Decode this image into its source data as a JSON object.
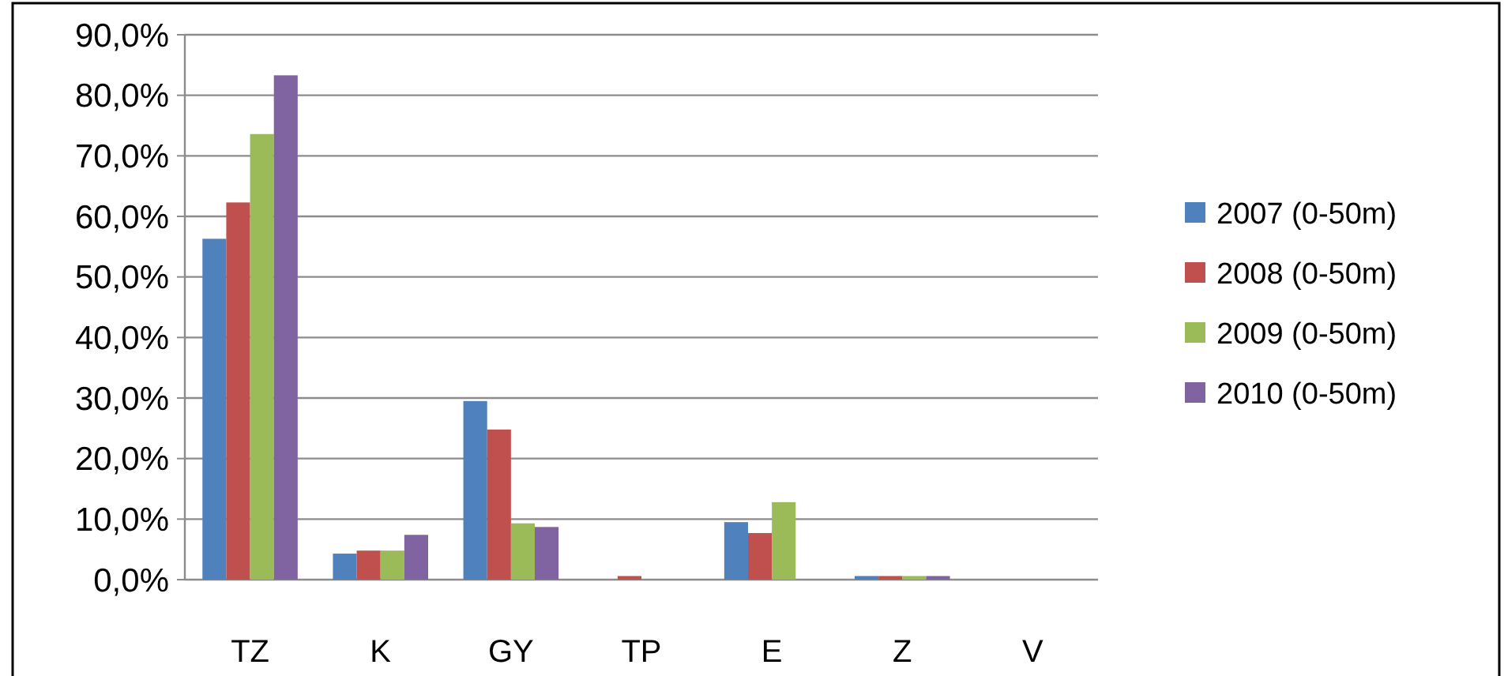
{
  "chart_data": {
    "type": "bar",
    "categories": [
      "TZ",
      "K",
      "GY",
      "TP",
      "E",
      "Z",
      "V"
    ],
    "series": [
      {
        "name": "2007 (0-50m)",
        "color": "#4f81bd",
        "values": [
          56.3,
          4.3,
          29.5,
          0,
          9.5,
          0.6,
          0
        ]
      },
      {
        "name": "2008 (0-50m)",
        "color": "#c0504d",
        "values": [
          62.3,
          4.8,
          24.8,
          0.6,
          7.7,
          0.6,
          0
        ]
      },
      {
        "name": "2009 (0-50m)",
        "color": "#9bbb59",
        "values": [
          73.6,
          4.8,
          9.3,
          0,
          12.8,
          0.6,
          0
        ]
      },
      {
        "name": "2010 (0-50m)",
        "color": "#8064a2",
        "values": [
          83.3,
          7.4,
          8.7,
          0,
          0,
          0.6,
          0
        ]
      }
    ],
    "ylim": [
      0,
      90
    ],
    "yticks": [
      {
        "value": 0,
        "label": "0,0%"
      },
      {
        "value": 10,
        "label": "10,0%"
      },
      {
        "value": 20,
        "label": "20,0%"
      },
      {
        "value": 30,
        "label": "30,0%"
      },
      {
        "value": 40,
        "label": "40,0%"
      },
      {
        "value": 50,
        "label": "50,0%"
      },
      {
        "value": 60,
        "label": "60,0%"
      },
      {
        "value": 70,
        "label": "70,0%"
      },
      {
        "value": 80,
        "label": "80,0%"
      },
      {
        "value": 90,
        "label": "90,0%"
      }
    ],
    "grid": "y",
    "legend": "right"
  }
}
